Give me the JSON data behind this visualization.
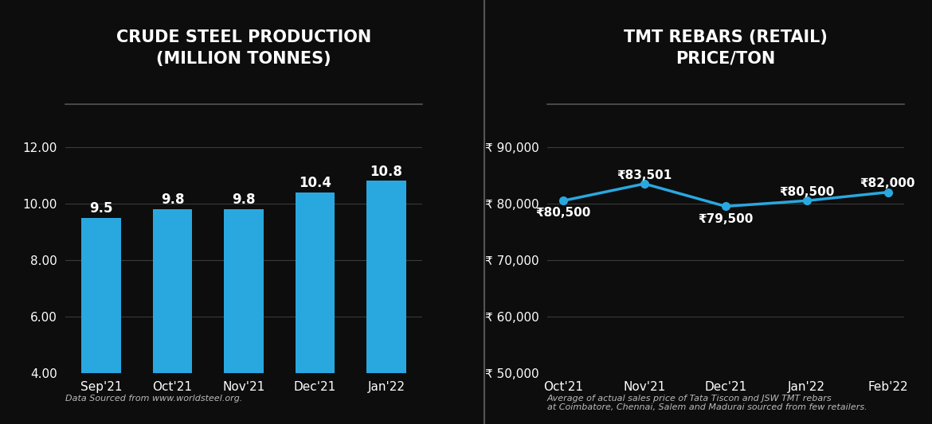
{
  "bg_color": "#0d0d0d",
  "panel_bg": "#0d0d0d",
  "text_color": "#ffffff",
  "divider_color": "#555555",
  "bar_title": "CRUDE STEEL PRODUCTION\n(MILLION TONNES)",
  "bar_categories": [
    "Sep'21",
    "Oct'21",
    "Nov'21",
    "Dec'21",
    "Jan'22"
  ],
  "bar_values": [
    9.5,
    9.8,
    9.8,
    10.4,
    10.8
  ],
  "bar_color": "#29a8e0",
  "bar_ylim": [
    4.0,
    13.0
  ],
  "bar_yticks": [
    4.0,
    6.0,
    8.0,
    10.0,
    12.0
  ],
  "bar_source": "Data Sourced from www.worldsteel.org.",
  "line_title": "TMT REBARS (RETAIL)\nPRICE/TON",
  "line_categories": [
    "Oct'21",
    "Nov'21",
    "Dec'21",
    "Jan'22",
    "Feb'22"
  ],
  "line_values": [
    80500,
    83501,
    79500,
    80500,
    82000
  ],
  "line_labels": [
    "₹80,500",
    "₹83,501",
    "₹79,500",
    "₹80,500",
    "₹82,000"
  ],
  "line_label_offsets": [
    [
      0,
      -2200
    ],
    [
      0,
      1500
    ],
    [
      0,
      -2200
    ],
    [
      0,
      1500
    ],
    [
      0,
      1500
    ]
  ],
  "line_color": "#29a8e0",
  "line_ylim": [
    50000,
    95000
  ],
  "line_yticks": [
    50000,
    60000,
    70000,
    80000,
    90000
  ],
  "line_ytick_labels": [
    "₹ 50,000",
    "₹ 60,000",
    "₹ 70,000",
    "₹ 80,000",
    "₹ 90,000"
  ],
  "line_source": "Average of actual sales price of Tata Tiscon and JSW TMT rebars\nat Coimbatore, Chennai, Salem and Madurai sourced from few retailers."
}
